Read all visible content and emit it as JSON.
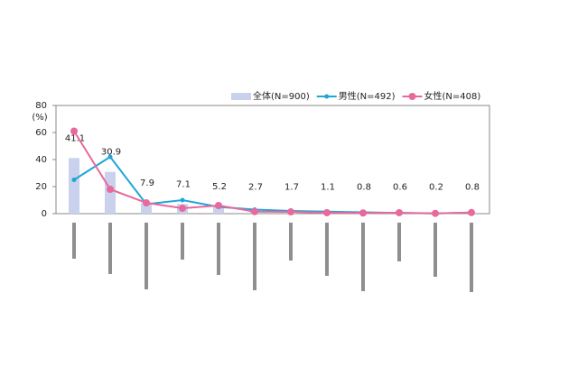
{
  "chart_data": {
    "type": "combo",
    "y_label": "(%)",
    "categories": [
      null,
      null,
      null,
      null,
      null,
      null,
      null,
      null,
      null,
      null,
      null,
      null
    ],
    "ylim": [
      0,
      80
    ],
    "yticks": [
      0,
      20,
      40,
      60,
      80
    ],
    "grid": false,
    "legend": "top-right",
    "series": [
      {
        "name": "全体(N=900)",
        "type": "bar",
        "color": "#c9d1ec",
        "data_labels": true,
        "values": [
          41.1,
          30.9,
          7.9,
          7.1,
          5.2,
          2.7,
          1.7,
          1.1,
          0.8,
          0.6,
          0.2,
          0.8
        ]
      },
      {
        "name": "男性(N=492)",
        "type": "line",
        "color": "#1fa6d6",
        "values": [
          25,
          42,
          7,
          10,
          5,
          3,
          2,
          1.5,
          1,
          0.5,
          0.2,
          0.8
        ]
      },
      {
        "name": "女性(N=408)",
        "type": "line",
        "color": "#e8699b",
        "values": [
          61,
          18,
          8,
          4,
          6,
          1.5,
          1.3,
          0.7,
          0.5,
          0.7,
          0.2,
          0.8
        ]
      }
    ]
  }
}
